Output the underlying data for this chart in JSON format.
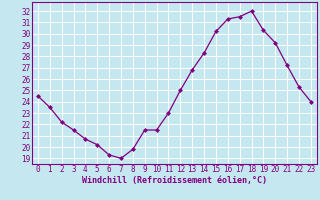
{
  "x": [
    0,
    1,
    2,
    3,
    4,
    5,
    6,
    7,
    8,
    9,
    10,
    11,
    12,
    13,
    14,
    15,
    16,
    17,
    18,
    19,
    20,
    21,
    22,
    23
  ],
  "y": [
    24.5,
    23.5,
    22.2,
    21.5,
    20.7,
    20.2,
    19.3,
    19.0,
    19.8,
    21.5,
    21.5,
    23.0,
    25.0,
    26.8,
    28.3,
    30.2,
    31.3,
    31.5,
    32.0,
    30.3,
    29.2,
    27.2,
    25.3,
    24.0
  ],
  "line_color": "#800080",
  "marker": "D",
  "markersize": 2.0,
  "linewidth": 0.9,
  "bg_color": "#c5e8f0",
  "grid_color": "#ffffff",
  "xlabel": "Windchill (Refroidissement éolien,°C)",
  "xlabel_fontsize": 6.0,
  "ylim": [
    18.5,
    32.8
  ],
  "xlim": [
    -0.5,
    23.5
  ],
  "tick_fontsize": 5.5,
  "tick_color": "#800080",
  "spine_color": "#800080"
}
